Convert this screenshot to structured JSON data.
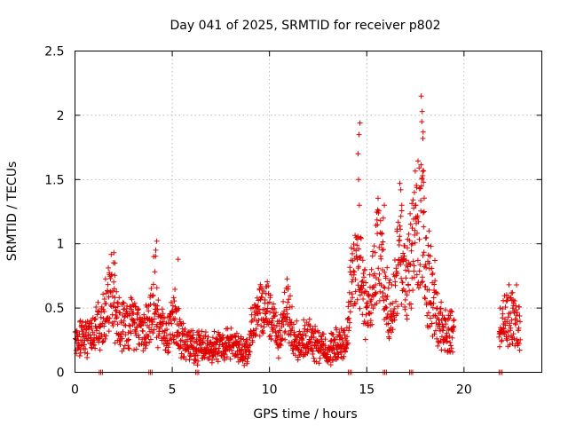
{
  "chart_data": {
    "type": "scatter",
    "title": "Day 041 of 2025, SRMTID for receiver p802",
    "xlabel": "GPS time / hours",
    "ylabel": "SRMTID / TECUs",
    "xlim": [
      0,
      24
    ],
    "ylim": [
      0,
      2.5
    ],
    "xticks": [
      0,
      5,
      10,
      15,
      20
    ],
    "yticks": [
      0,
      0.5,
      1,
      1.5,
      2,
      2.5
    ],
    "ytick_labels": [
      "0",
      "0.5",
      "1",
      "1.5",
      "2",
      "2.5"
    ],
    "grid": true,
    "marker": "+",
    "color": "#e00000",
    "coverage": [
      [
        0,
        19.5
      ],
      [
        21.8,
        22.9
      ]
    ],
    "baseline_gaps": [
      1.25,
      3.8,
      6.2,
      14.05,
      15.85,
      17.2,
      21.8
    ],
    "anchors": [
      [
        0,
        0.25
      ],
      [
        0.5,
        0.28
      ],
      [
        1.0,
        0.3
      ],
      [
        1.4,
        0.42
      ],
      [
        1.75,
        0.55
      ],
      [
        1.9,
        0.7
      ],
      [
        2.1,
        0.45
      ],
      [
        2.5,
        0.35
      ],
      [
        3.0,
        0.4
      ],
      [
        3.5,
        0.3
      ],
      [
        3.9,
        0.45
      ],
      [
        4.1,
        0.65
      ],
      [
        4.3,
        0.38
      ],
      [
        4.7,
        0.28
      ],
      [
        5.0,
        0.45
      ],
      [
        5.2,
        0.4
      ],
      [
        5.5,
        0.25
      ],
      [
        6.0,
        0.2
      ],
      [
        7.0,
        0.2
      ],
      [
        8.0,
        0.22
      ],
      [
        8.8,
        0.15
      ],
      [
        9.1,
        0.35
      ],
      [
        9.5,
        0.45
      ],
      [
        10.0,
        0.5
      ],
      [
        10.5,
        0.25
      ],
      [
        10.9,
        0.5
      ],
      [
        11.5,
        0.2
      ],
      [
        12.0,
        0.3
      ],
      [
        13.0,
        0.15
      ],
      [
        13.5,
        0.22
      ],
      [
        14.0,
        0.25
      ],
      [
        14.2,
        0.75
      ],
      [
        14.5,
        0.9
      ],
      [
        14.8,
        0.6
      ],
      [
        15.0,
        0.5
      ],
      [
        15.3,
        0.65
      ],
      [
        15.6,
        0.95
      ],
      [
        16.0,
        0.55
      ],
      [
        16.3,
        0.45
      ],
      [
        16.5,
        0.75
      ],
      [
        16.8,
        0.9
      ],
      [
        17.0,
        0.6
      ],
      [
        17.3,
        0.95
      ],
      [
        17.6,
        1.15
      ],
      [
        17.8,
        1.2
      ],
      [
        18.0,
        0.85
      ],
      [
        18.3,
        0.6
      ],
      [
        18.6,
        0.45
      ],
      [
        19.0,
        0.32
      ],
      [
        19.5,
        0.3
      ],
      [
        21.8,
        0.35
      ],
      [
        22.2,
        0.45
      ],
      [
        22.5,
        0.42
      ],
      [
        22.9,
        0.35
      ]
    ],
    "spikes": [
      [
        4.2,
        1.02
      ],
      [
        4.15,
        0.95
      ],
      [
        5.3,
        0.88
      ],
      [
        2.0,
        0.93
      ],
      [
        2.05,
        0.85
      ],
      [
        14.65,
        1.94
      ],
      [
        14.6,
        1.85
      ],
      [
        14.55,
        1.7
      ],
      [
        14.58,
        1.5
      ],
      [
        14.62,
        1.3
      ],
      [
        14.68,
        1.05
      ],
      [
        15.9,
        1.3
      ],
      [
        15.85,
        1.2
      ],
      [
        16.7,
        1.47
      ],
      [
        16.75,
        1.42
      ],
      [
        16.8,
        1.3
      ],
      [
        17.45,
        1.4
      ],
      [
        17.5,
        1.3
      ],
      [
        17.6,
        1.2
      ],
      [
        17.8,
        2.15
      ],
      [
        17.85,
        2.03
      ],
      [
        17.83,
        1.95
      ],
      [
        17.9,
        1.87
      ],
      [
        17.88,
        1.82
      ],
      [
        17.92,
        1.57
      ],
      [
        17.87,
        1.53
      ],
      [
        17.95,
        1.25
      ],
      [
        18.2,
        1.1
      ],
      [
        18.3,
        0.98
      ],
      [
        18.5,
        0.87
      ],
      [
        22.7,
        0.68
      ],
      [
        22.5,
        0.62
      ]
    ]
  }
}
